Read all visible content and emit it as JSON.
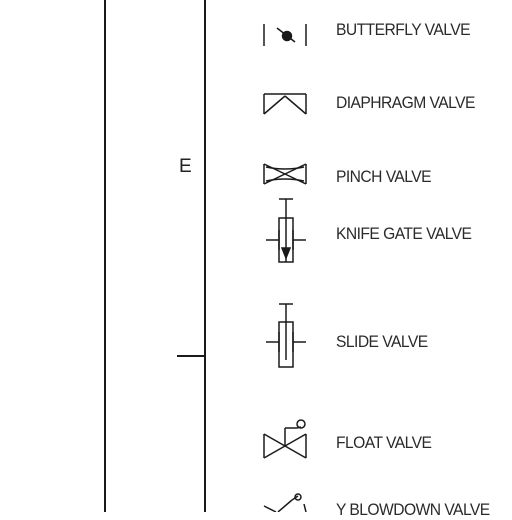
{
  "zone_label": "E",
  "valves": [
    {
      "label": "BUTTERFLY VALVE",
      "icon": "butterfly-valve-icon"
    },
    {
      "label": "DIAPHRAGM VALVE",
      "icon": "diaphragm-valve-icon"
    },
    {
      "label": "PINCH VALVE",
      "icon": "pinch-valve-icon"
    },
    {
      "label": "KNIFE GATE VALVE",
      "icon": "knife-gate-valve-icon"
    },
    {
      "label": "SLIDE VALVE",
      "icon": "slide-valve-icon"
    },
    {
      "label": "FLOAT VALVE",
      "icon": "float-valve-icon"
    },
    {
      "label": "Y BLOWDOWN VALVE",
      "icon": "y-blowdown-valve-icon"
    }
  ]
}
